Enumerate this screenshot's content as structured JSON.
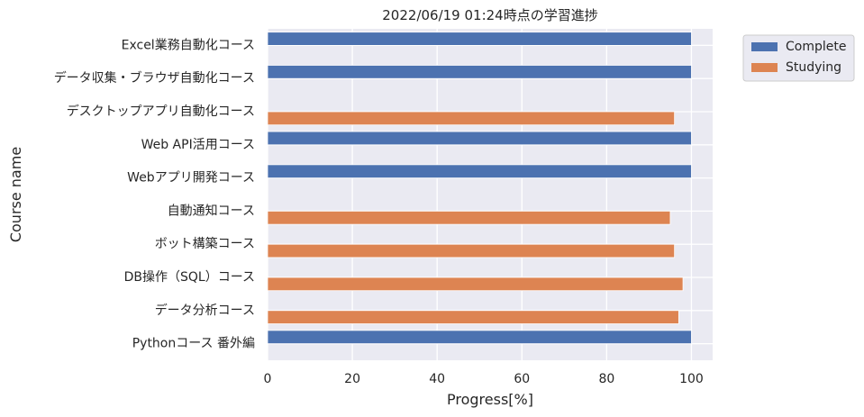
{
  "chart_data": {
    "type": "bar",
    "orientation": "horizontal",
    "title": "2022/06/19 01:24時点の学習進捗",
    "xlabel": "Progress[%]",
    "ylabel": "Course name",
    "xlim": [
      0,
      105
    ],
    "xticks": [
      0,
      20,
      40,
      60,
      80,
      100
    ],
    "grid": true,
    "legend_position": "outside-top-right",
    "categories": [
      "Excel業務自動化コース",
      "データ収集・ブラウザ自動化コース",
      "デスクトップアプリ自動化コース",
      "Web API活用コース",
      "Webアプリ開発コース",
      "自動通知コース",
      "ボット構築コース",
      "DB操作（SQL）コース",
      "データ分析コース",
      "Pythonコース 番外編"
    ],
    "series": [
      {
        "name": "Complete",
        "color": "#4c72b0",
        "values": [
          100,
          100,
          null,
          100,
          100,
          null,
          null,
          null,
          null,
          100
        ]
      },
      {
        "name": "Studying",
        "color": "#dd8452",
        "values": [
          null,
          null,
          96,
          null,
          null,
          95,
          96,
          98,
          97,
          null
        ]
      }
    ]
  }
}
